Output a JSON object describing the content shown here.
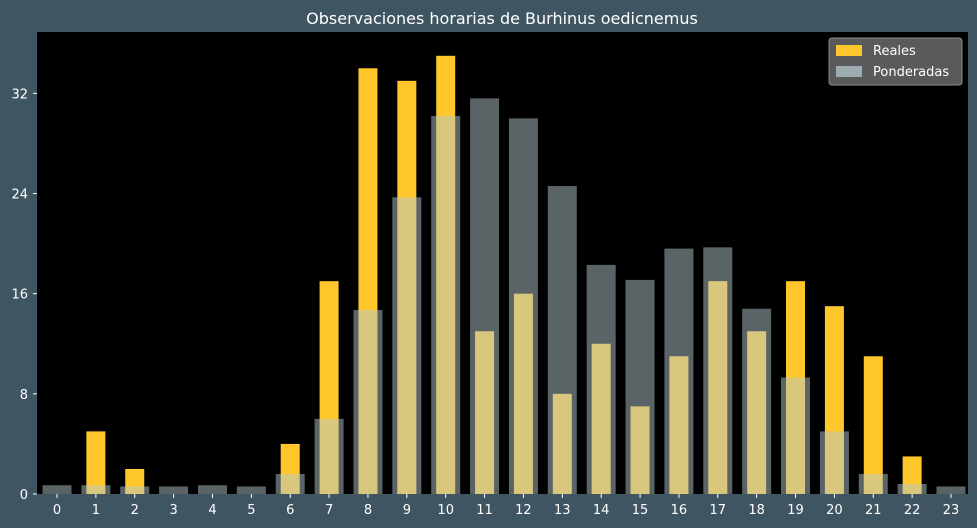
{
  "chart_data": {
    "type": "bar",
    "title": "Observaciones horarias de Burhinus oedicnemus",
    "xlabel": "",
    "ylabel": "",
    "categories": [
      "0",
      "1",
      "2",
      "3",
      "4",
      "5",
      "6",
      "7",
      "8",
      "9",
      "10",
      "11",
      "12",
      "13",
      "14",
      "15",
      "16",
      "17",
      "18",
      "19",
      "20",
      "21",
      "22",
      "23"
    ],
    "series": [
      {
        "name": "Reales",
        "color": "#ffc72c",
        "values": [
          0,
          5,
          2,
          0,
          0,
          0,
          4,
          17,
          34,
          33,
          35,
          13,
          16,
          8,
          12,
          7,
          11,
          17,
          13,
          17,
          15,
          11,
          3,
          0
        ]
      },
      {
        "name": "Ponderadas",
        "color": "#b4c8cd",
        "opacity": 0.5,
        "values": [
          0.7,
          0.7,
          0.6,
          0.6,
          0.7,
          0.6,
          1.6,
          6,
          14.7,
          23.7,
          30.2,
          31.6,
          30,
          24.6,
          18.3,
          17.1,
          19.6,
          19.7,
          14.8,
          9.3,
          5,
          1.6,
          0.8,
          0.6
        ]
      }
    ],
    "ylim": [
      0,
      36.9
    ],
    "yticks": [
      "0",
      "8",
      "16",
      "24",
      "32"
    ],
    "grid": false,
    "legend_position": "top-right",
    "plot_background": "#000000",
    "figure_background": "#3f5562"
  }
}
